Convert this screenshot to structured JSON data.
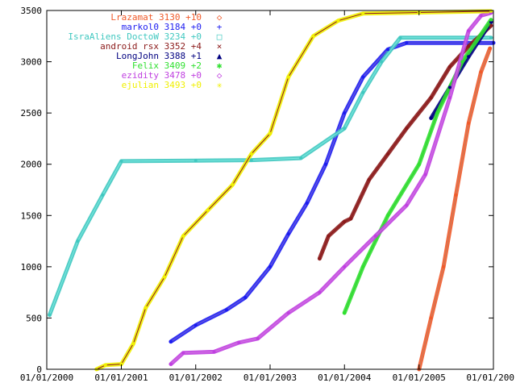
{
  "chart_data": {
    "type": "line",
    "title": "",
    "xlabel": "",
    "ylabel": "",
    "x_axis": {
      "type": "date",
      "range": [
        "2000-01-01",
        "2006-01-01"
      ],
      "ticks": [
        "2000-01-01",
        "2001-01-01",
        "2002-01-01",
        "2003-01-01",
        "2004-01-01",
        "2005-01-01",
        "2006-01-01"
      ],
      "tick_labels": [
        "01/01/2000",
        "01/01/2001",
        "01/01/2002",
        "01/01/2003",
        "01/01/2004",
        "01/01/2005",
        "01/01/200"
      ]
    },
    "y_axis": {
      "range": [
        0,
        3500
      ],
      "ticks": [
        0,
        500,
        1000,
        1500,
        2000,
        2500,
        3000,
        3500
      ],
      "tick_labels": [
        "0",
        "500",
        "1000",
        "1500",
        "2000",
        "2500",
        "3000",
        "3500"
      ]
    },
    "grid": false,
    "legend_position": "top-left",
    "series": [
      {
        "name": "Lrazamat",
        "legend_suffix": "3130 +10",
        "marker": "◇",
        "color": "#f05a2a",
        "line_color": "#c87a5a",
        "points": [
          [
            "2005-01-01",
            0
          ],
          [
            "2005-03-01",
            500
          ],
          [
            "2005-05-01",
            1000
          ],
          [
            "2005-07-01",
            1700
          ],
          [
            "2005-09-01",
            2400
          ],
          [
            "2005-11-01",
            2900
          ],
          [
            "2005-12-15",
            3130
          ]
        ]
      },
      {
        "name": "markol0",
        "legend_suffix": "3184 +0",
        "marker": "+",
        "color": "#1c1cf0",
        "line_color": "#6a5adc",
        "points": [
          [
            "2001-09-01",
            270
          ],
          [
            "2002-01-01",
            430
          ],
          [
            "2002-06-01",
            580
          ],
          [
            "2002-09-01",
            700
          ],
          [
            "2003-01-01",
            1000
          ],
          [
            "2003-04-01",
            1320
          ],
          [
            "2003-07-01",
            1620
          ],
          [
            "2003-10-01",
            2000
          ],
          [
            "2004-01-01",
            2500
          ],
          [
            "2004-04-01",
            2850
          ],
          [
            "2004-08-01",
            3120
          ],
          [
            "2004-11-01",
            3184
          ],
          [
            "2006-01-01",
            3184
          ]
        ]
      },
      {
        "name": "IsraAliens DoctoW",
        "legend_suffix": "3234 +0",
        "marker": "□",
        "color": "#40c8c0",
        "line_color": "#7ae8e0",
        "points": [
          [
            "2000-01-15",
            530
          ],
          [
            "2000-06-01",
            1250
          ],
          [
            "2000-10-01",
            1700
          ],
          [
            "2001-01-01",
            2030
          ],
          [
            "2002-01-01",
            2035
          ],
          [
            "2002-10-01",
            2040
          ],
          [
            "2003-06-01",
            2060
          ],
          [
            "2004-01-01",
            2350
          ],
          [
            "2004-04-01",
            2700
          ],
          [
            "2004-07-01",
            3000
          ],
          [
            "2004-10-01",
            3234
          ],
          [
            "2005-12-20",
            3234
          ]
        ]
      },
      {
        "name": "android rsx",
        "legend_suffix": "3352 +4",
        "marker": "×",
        "color": "#8b1a1a",
        "line_color": "#8b1a1a",
        "points": [
          [
            "2003-09-01",
            1080
          ],
          [
            "2003-10-15",
            1300
          ],
          [
            "2004-01-01",
            1440
          ],
          [
            "2004-02-01",
            1470
          ],
          [
            "2004-05-01",
            1850
          ],
          [
            "2004-08-01",
            2100
          ],
          [
            "2004-11-01",
            2350
          ],
          [
            "2005-03-01",
            2650
          ],
          [
            "2005-06-01",
            2950
          ],
          [
            "2005-09-01",
            3150
          ],
          [
            "2005-12-20",
            3352
          ]
        ]
      },
      {
        "name": "LongJohn",
        "legend_suffix": "3388 +1",
        "marker": "▲",
        "color": "#000080",
        "line_color": "#000080",
        "points": [
          [
            "2005-03-01",
            2450
          ],
          [
            "2005-06-01",
            2750
          ],
          [
            "2005-09-01",
            3050
          ],
          [
            "2005-12-20",
            3388
          ]
        ]
      },
      {
        "name": "Felix",
        "legend_suffix": "3409 +2",
        "marker": "✱",
        "color": "#30e030",
        "line_color": "#30d030",
        "points": [
          [
            "2004-01-01",
            550
          ],
          [
            "2004-04-01",
            1000
          ],
          [
            "2004-08-01",
            1500
          ],
          [
            "2005-01-01",
            2000
          ],
          [
            "2005-04-01",
            2500
          ],
          [
            "2005-08-01",
            3000
          ],
          [
            "2005-12-20",
            3409
          ]
        ]
      },
      {
        "name": "ezidity",
        "legend_suffix": "3478 +0",
        "marker": "◇",
        "color": "#c040e0",
        "line_color": "#d070e0",
        "points": [
          [
            "2001-09-01",
            50
          ],
          [
            "2001-11-01",
            160
          ],
          [
            "2002-04-01",
            170
          ],
          [
            "2002-08-01",
            260
          ],
          [
            "2002-11-01",
            300
          ],
          [
            "2003-04-01",
            550
          ],
          [
            "2003-09-01",
            750
          ],
          [
            "2004-01-01",
            1000
          ],
          [
            "2004-06-01",
            1300
          ],
          [
            "2004-11-01",
            1600
          ],
          [
            "2005-02-01",
            1900
          ],
          [
            "2005-06-01",
            2650
          ],
          [
            "2005-09-01",
            3300
          ],
          [
            "2005-11-01",
            3450
          ],
          [
            "2005-12-20",
            3478
          ]
        ]
      },
      {
        "name": "ejulian",
        "legend_suffix": "3493 +0",
        "marker": "✳",
        "color": "#f0f000",
        "line_color": "#8b1a1a",
        "points": [
          [
            "2000-09-01",
            0
          ],
          [
            "2000-10-15",
            40
          ],
          [
            "2001-01-01",
            50
          ],
          [
            "2001-03-01",
            250
          ],
          [
            "2001-05-01",
            600
          ],
          [
            "2001-08-01",
            900
          ],
          [
            "2001-11-01",
            1300
          ],
          [
            "2002-03-01",
            1550
          ],
          [
            "2002-07-01",
            1800
          ],
          [
            "2002-10-01",
            2100
          ],
          [
            "2003-01-01",
            2300
          ],
          [
            "2003-04-01",
            2850
          ],
          [
            "2003-08-01",
            3250
          ],
          [
            "2003-12-01",
            3400
          ],
          [
            "2004-04-01",
            3470
          ],
          [
            "2005-01-01",
            3480
          ],
          [
            "2005-12-20",
            3493
          ]
        ]
      }
    ]
  }
}
